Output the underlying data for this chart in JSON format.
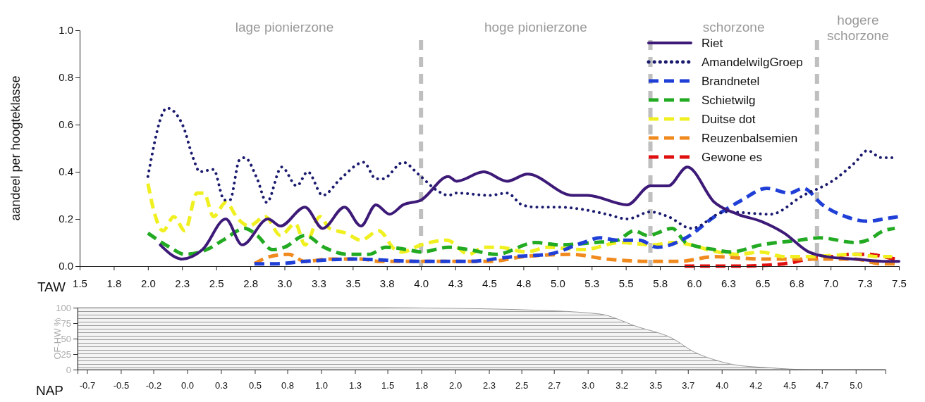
{
  "chart_data": [
    {
      "type": "line",
      "ylabel": "aandeel per hoogteklasse",
      "xlabel": "TAW",
      "xlim": [
        1.5,
        7.5
      ],
      "ylim": [
        0,
        1
      ],
      "xticks": [
        {
          "value": 1.5,
          "label": "1.5"
        },
        {
          "value": 1.75,
          "label": "1.8"
        },
        {
          "value": 2,
          "label": "2.0"
        },
        {
          "value": 2.25,
          "label": "2.3"
        },
        {
          "value": 2.5,
          "label": "2.5"
        },
        {
          "value": 2.75,
          "label": "2.8"
        },
        {
          "value": 3,
          "label": "3.0"
        },
        {
          "value": 3.25,
          "label": "3.3"
        },
        {
          "value": 3.5,
          "label": "3.5"
        },
        {
          "value": 3.75,
          "label": "3.8"
        },
        {
          "value": 4,
          "label": "4.0"
        },
        {
          "value": 4.25,
          "label": "4.3"
        },
        {
          "value": 4.5,
          "label": "4.5"
        },
        {
          "value": 4.75,
          "label": "4.8"
        },
        {
          "value": 5,
          "label": "5.0"
        },
        {
          "value": 5.25,
          "label": "5.3"
        },
        {
          "value": 5.5,
          "label": "5.5"
        },
        {
          "value": 5.75,
          "label": "5.8"
        },
        {
          "value": 6,
          "label": "6.0"
        },
        {
          "value": 6.25,
          "label": "6.3"
        },
        {
          "value": 6.5,
          "label": "6.5"
        },
        {
          "value": 6.75,
          "label": "6.8"
        },
        {
          "value": 7,
          "label": "7.0"
        },
        {
          "value": 7.25,
          "label": "7.3"
        },
        {
          "value": 7.5,
          "label": "7.5"
        }
      ],
      "yticks": [
        {
          "value": 0,
          "label": "0.0"
        },
        {
          "value": 0.2,
          "label": "0.2"
        },
        {
          "value": 0.4,
          "label": "0.4"
        },
        {
          "value": 0.6,
          "label": "0.6"
        },
        {
          "value": 0.8,
          "label": "0.8"
        },
        {
          "value": 1,
          "label": "1.0"
        }
      ],
      "legend": "top right",
      "series": [
        {
          "name": "Riet",
          "color": "#3d1a78",
          "line_style": "solid",
          "x": [
            2.09,
            2.25,
            2.4,
            2.57,
            2.69,
            2.88,
            2.97,
            3.15,
            3.28,
            3.44,
            3.56,
            3.67,
            3.77,
            3.87,
            4.0,
            4.2,
            4.26,
            4.46,
            4.63,
            4.78,
            5.11,
            5.22,
            5.51,
            5.68,
            5.81,
            5.95,
            6.15,
            6.32,
            6.49,
            6.66,
            6.84,
            6.97,
            7.18,
            7.41,
            7.5
          ],
          "values": [
            0.09,
            0.03,
            0.07,
            0.2,
            0.09,
            0.2,
            0.17,
            0.25,
            0.16,
            0.25,
            0.17,
            0.26,
            0.22,
            0.26,
            0.28,
            0.38,
            0.36,
            0.4,
            0.36,
            0.39,
            0.3,
            0.3,
            0.26,
            0.34,
            0.34,
            0.42,
            0.27,
            0.22,
            0.19,
            0.14,
            0.06,
            0.04,
            0.03,
            0.02,
            0.02
          ]
        },
        {
          "name": "AmandelwilgGroep",
          "color": "#1a1a6e",
          "line_style": "dotted",
          "x": [
            2.0,
            2.14,
            2.2,
            2.26,
            2.33,
            2.38,
            2.48,
            2.56,
            2.6,
            2.67,
            2.71,
            2.8,
            2.87,
            2.98,
            3.09,
            3.17,
            3.28,
            3.41,
            3.58,
            3.67,
            3.72,
            3.87,
            3.98,
            4.12,
            4.2,
            4.26,
            4.5,
            4.63,
            4.74,
            4.84,
            5.01,
            5.19,
            5.36,
            5.51,
            5.68,
            5.81,
            5.98,
            6.23,
            6.56,
            6.8,
            7.01,
            7.18,
            7.27,
            7.37,
            7.47
          ],
          "values": [
            0.38,
            0.67,
            0.65,
            0.59,
            0.46,
            0.4,
            0.41,
            0.28,
            0.28,
            0.45,
            0.46,
            0.37,
            0.27,
            0.42,
            0.34,
            0.4,
            0.3,
            0.37,
            0.44,
            0.37,
            0.37,
            0.44,
            0.39,
            0.32,
            0.3,
            0.31,
            0.3,
            0.31,
            0.26,
            0.25,
            0.25,
            0.24,
            0.22,
            0.2,
            0.23,
            0.21,
            0.16,
            0.23,
            0.22,
            0.3,
            0.36,
            0.44,
            0.49,
            0.46,
            0.46
          ]
        },
        {
          "name": "Brandnetel",
          "color": "#1f3fd6",
          "line_style": "dashed",
          "x": [
            2.78,
            2.93,
            3.15,
            3.5,
            4.0,
            4.35,
            4.67,
            4.93,
            5.19,
            5.31,
            5.44,
            5.6,
            5.73,
            5.94,
            6.15,
            6.35,
            6.53,
            6.7,
            6.8,
            6.94,
            7.11,
            7.27,
            7.39,
            7.5
          ],
          "values": [
            0.01,
            0.01,
            0.02,
            0.03,
            0.02,
            0.02,
            0.04,
            0.05,
            0.1,
            0.12,
            0.11,
            0.11,
            0.08,
            0.12,
            0.21,
            0.28,
            0.33,
            0.31,
            0.33,
            0.26,
            0.21,
            0.19,
            0.2,
            0.21
          ]
        },
        {
          "name": "Schietwilg",
          "color": "#22aa22",
          "line_style": "dashed",
          "x": [
            2.0,
            2.16,
            2.27,
            2.43,
            2.55,
            2.71,
            2.8,
            2.91,
            3.0,
            3.15,
            3.29,
            3.46,
            3.62,
            3.74,
            3.9,
            4.0,
            4.2,
            4.35,
            4.55,
            4.84,
            5.01,
            5.27,
            5.44,
            5.56,
            5.66,
            5.84,
            5.94,
            6.15,
            6.27,
            6.49,
            6.77,
            6.92,
            7.18,
            7.27,
            7.39,
            7.47
          ],
          "values": [
            0.14,
            0.08,
            0.05,
            0.07,
            0.11,
            0.16,
            0.13,
            0.07,
            0.08,
            0.13,
            0.08,
            0.05,
            0.05,
            0.08,
            0.07,
            0.06,
            0.08,
            0.07,
            0.05,
            0.1,
            0.09,
            0.1,
            0.11,
            0.15,
            0.13,
            0.16,
            0.1,
            0.07,
            0.06,
            0.09,
            0.11,
            0.12,
            0.1,
            0.11,
            0.15,
            0.16
          ]
        },
        {
          "name": "Duitse dot",
          "color": "#f0f020",
          "line_style": "dashed",
          "x": [
            2.0,
            2.05,
            2.11,
            2.19,
            2.27,
            2.36,
            2.41,
            2.48,
            2.57,
            2.66,
            2.74,
            2.86,
            2.97,
            3.08,
            3.15,
            3.26,
            3.33,
            3.45,
            3.56,
            3.69,
            3.81,
            3.86,
            4.0,
            4.19,
            4.35,
            4.46,
            4.57,
            4.77,
            4.93,
            5.19,
            5.46,
            5.7,
            5.84,
            5.98,
            6.1,
            6.32,
            6.49,
            6.66,
            6.84,
            7.18,
            7.35,
            7.45
          ],
          "values": [
            0.35,
            0.22,
            0.15,
            0.21,
            0.15,
            0.31,
            0.31,
            0.21,
            0.27,
            0.2,
            0.17,
            0.21,
            0.13,
            0.18,
            0.09,
            0.21,
            0.16,
            0.14,
            0.11,
            0.15,
            0.07,
            0.06,
            0.09,
            0.11,
            0.05,
            0.08,
            0.08,
            0.06,
            0.08,
            0.07,
            0.1,
            0.09,
            0.1,
            0.09,
            0.07,
            0.05,
            0.06,
            0.04,
            0.04,
            0.05,
            0.04,
            0.04
          ]
        },
        {
          "name": "Reuzenbalsemien",
          "color": "#f08a1e",
          "line_style": "dashed",
          "x": [
            2.78,
            2.89,
            3.03,
            3.15,
            3.33,
            3.56,
            3.7,
            4.01,
            4.35,
            4.5,
            4.75,
            5.1,
            5.36,
            5.7,
            5.89,
            6.15,
            6.49,
            6.84,
            7.18,
            7.37,
            7.47
          ],
          "values": [
            0.01,
            0.04,
            0.05,
            0.02,
            0.03,
            0.03,
            0.02,
            0.02,
            0.02,
            0.02,
            0.04,
            0.05,
            0.03,
            0.02,
            0.02,
            0.04,
            0.03,
            0.03,
            0.03,
            0.01,
            0.01
          ]
        },
        {
          "name": "Gewone es",
          "color": "#e01010",
          "line_style": "dashed",
          "x": [
            5.93,
            6.32,
            6.66,
            6.84,
            7.01,
            7.15,
            7.27,
            7.39,
            7.47
          ],
          "values": [
            0,
            0,
            0.01,
            0.03,
            0.04,
            0.05,
            0.05,
            0.04,
            0.03
          ]
        }
      ],
      "ref_lines": [
        {
          "axis": "x",
          "value": 4.0,
          "color": "#bfbfbf",
          "line_style": "dashed"
        },
        {
          "axis": "x",
          "value": 5.68,
          "color": "#bfbfbf",
          "line_style": "dashed"
        },
        {
          "axis": "x",
          "value": 6.9,
          "color": "#bfbfbf",
          "line_style": "dashed"
        }
      ],
      "annotations": [
        "lage pionierzone",
        "hoge pionierzone",
        "schorzone",
        "hogere schorzone"
      ]
    },
    {
      "type": "area",
      "xlabel": "NAP",
      "ylabel": "OF-HW %",
      "xlim": [
        -0.78,
        5.19
      ],
      "ylim": [
        0,
        100
      ],
      "xticks": [
        {
          "value": -0.71,
          "label": "-0.7"
        },
        {
          "value": -0.46,
          "label": "-0.5"
        },
        {
          "value": -0.22,
          "label": "-0.2"
        },
        {
          "value": 0.03,
          "label": "0.0"
        },
        {
          "value": 0.28,
          "label": "0.3"
        },
        {
          "value": 0.53,
          "label": "0.5"
        },
        {
          "value": 0.77,
          "label": "0.8"
        },
        {
          "value": 1.02,
          "label": "1.0"
        },
        {
          "value": 1.27,
          "label": "1.3"
        },
        {
          "value": 1.51,
          "label": "1.5"
        },
        {
          "value": 1.76,
          "label": "1.8"
        },
        {
          "value": 2.01,
          "label": "2.0"
        },
        {
          "value": 2.26,
          "label": "2.3"
        },
        {
          "value": 2.5,
          "label": "2.5"
        },
        {
          "value": 2.74,
          "label": "2.7"
        },
        {
          "value": 2.99,
          "label": "3.0"
        },
        {
          "value": 3.24,
          "label": "3.2"
        },
        {
          "value": 3.49,
          "label": "3.5"
        },
        {
          "value": 3.73,
          "label": "3.7"
        },
        {
          "value": 3.98,
          "label": "4.0"
        },
        {
          "value": 4.23,
          "label": "4.2"
        },
        {
          "value": 4.48,
          "label": "4.5"
        },
        {
          "value": 4.72,
          "label": "4.7"
        },
        {
          "value": 4.97,
          "label": "5.0"
        }
      ],
      "yticks": [
        0,
        25,
        50,
        75,
        100
      ],
      "x": [
        -0.78,
        1.46,
        1.95,
        2.45,
        3.07,
        3.36,
        3.61,
        3.78,
        3.94,
        4.07,
        4.33,
        4.63,
        5.19
      ],
      "values": [
        100,
        100,
        99,
        97,
        90,
        69,
        51,
        28,
        15,
        8,
        3,
        0,
        0
      ],
      "color": "#999999"
    }
  ]
}
